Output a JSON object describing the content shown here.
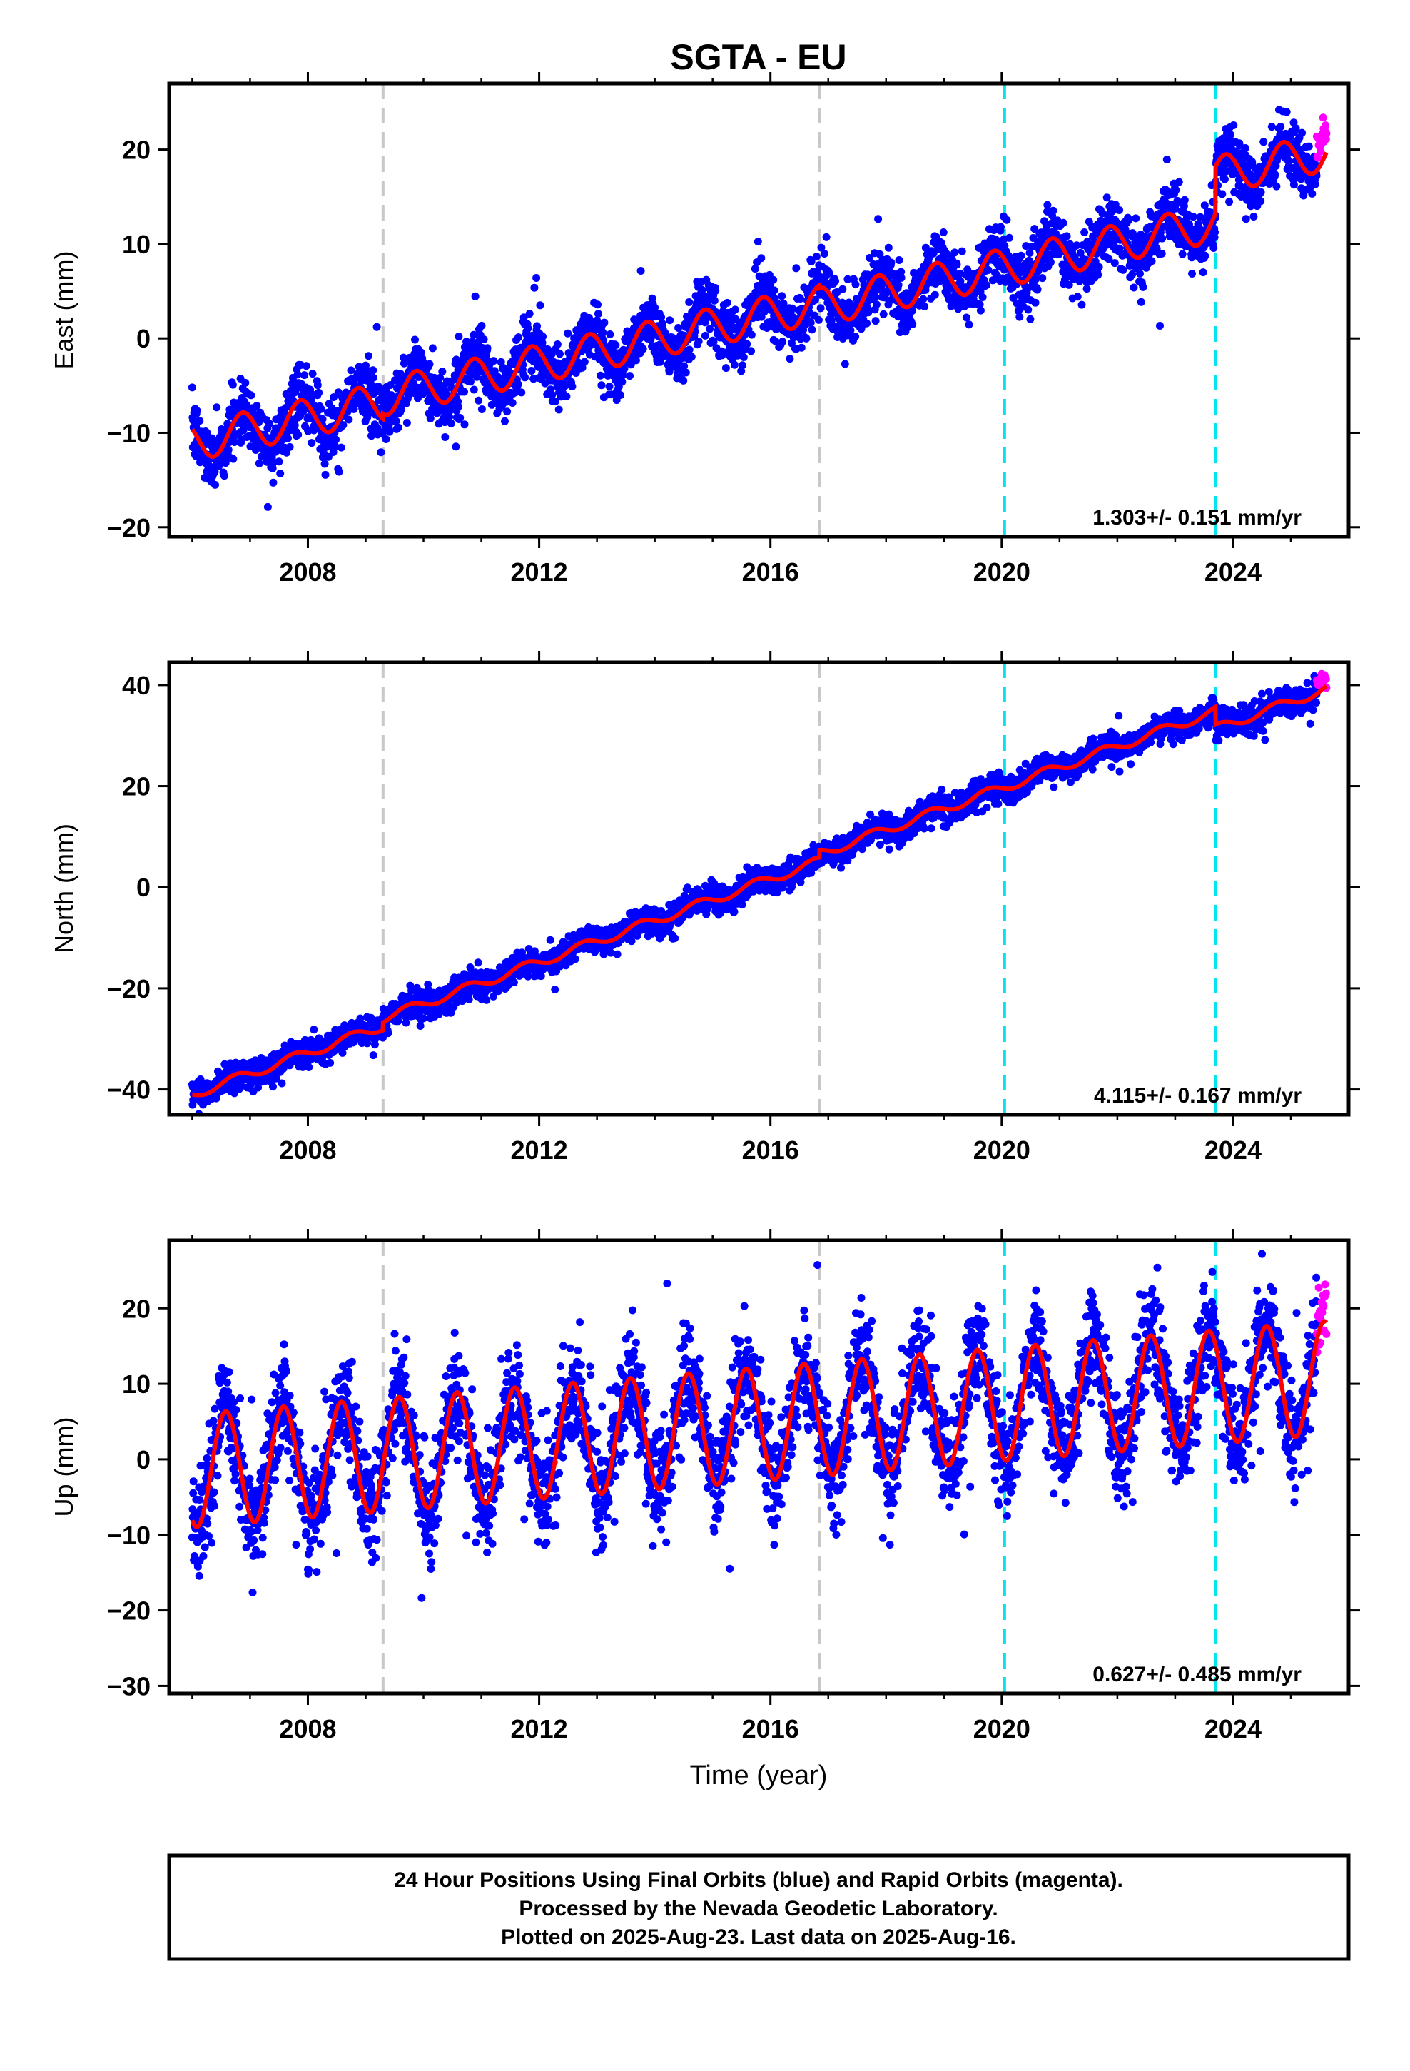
{
  "figure_title": "SGTA - EU",
  "xlabel": "Time (year)",
  "footer_lines": [
    "24 Hour Positions Using Final Orbits (blue) and Rapid Orbits (magenta).",
    "Processed by the Nevada Geodetic Laboratory.",
    "Plotted on 2025-Aug-23. Last data on 2025-Aug-16."
  ],
  "colors": {
    "final_orbits": "#0000ff",
    "rapid_orbits": "#ff00ff",
    "model_fit": "#ff0000",
    "gray_lines": "#c8c8c8",
    "cyan_lines": "#00e5ee"
  },
  "chart_data": [
    {
      "type": "scatter",
      "title": "SGTA - EU",
      "ylabel": "East (mm)",
      "xlim": [
        2005.6,
        2026.0
      ],
      "ylim": [
        -21,
        27
      ],
      "xticks": [
        2008,
        2012,
        2016,
        2020,
        2024
      ],
      "yticks": [
        -20,
        -10,
        0,
        10,
        20
      ],
      "rate_label": "1.303+/- 0.151 mm/yr",
      "vlines_gray": [
        2009.3,
        2016.85
      ],
      "vlines_cyan": [
        2020.05,
        2023.7
      ],
      "series": [
        {
          "name": "Final Orbits",
          "color": "#0000ff",
          "start": 2006.0,
          "end": 2025.45,
          "noise": 1.6,
          "model": {
            "t0": 2006.0,
            "v0": -11.0,
            "rate": 1.303,
            "amp": 2.0,
            "phase": 0.62,
            "offsets": [
              {
                "t": 2009.3,
                "d": 0.5
              },
              {
                "t": 2016.85,
                "d": -0.3
              },
              {
                "t": 2020.05,
                "d": 0.0
              },
              {
                "t": 2023.7,
                "d": 5.0
              }
            ]
          }
        },
        {
          "name": "Rapid Orbits",
          "color": "#ff00ff",
          "start": 2025.45,
          "end": 2025.62,
          "noise": 1.6
        }
      ]
    },
    {
      "type": "scatter",
      "ylabel": "North (mm)",
      "xlim": [
        2005.6,
        2026.0
      ],
      "ylim": [
        -45,
        44.5
      ],
      "xticks": [
        2008,
        2012,
        2016,
        2020,
        2024
      ],
      "yticks": [
        -40,
        -20,
        0,
        20,
        40
      ],
      "rate_label": "4.115+/- 0.167 mm/yr",
      "vlines_gray": [
        2009.3,
        2016.85
      ],
      "vlines_cyan": [
        2020.05,
        2023.7
      ],
      "series": [
        {
          "name": "Final Orbits",
          "color": "#0000ff",
          "start": 2006.0,
          "end": 2025.45,
          "noise": 1.3,
          "model": {
            "t0": 2006.0,
            "v0": -41.0,
            "rate": 4.115,
            "amp": 0.9,
            "phase": 0.5,
            "offsets": [
              {
                "t": 2009.3,
                "d": 1.5
              },
              {
                "t": 2016.85,
                "d": 1.5
              },
              {
                "t": 2020.05,
                "d": 0.0
              },
              {
                "t": 2023.7,
                "d": -3.5
              }
            ]
          }
        },
        {
          "name": "Rapid Orbits",
          "color": "#ff00ff",
          "start": 2025.45,
          "end": 2025.62,
          "noise": 1.3
        }
      ]
    },
    {
      "type": "scatter",
      "ylabel": "Up (mm)",
      "xlabel": "Time (year)",
      "xlim": [
        2005.6,
        2026.0
      ],
      "ylim": [
        -31,
        29
      ],
      "xticks": [
        2008,
        2012,
        2016,
        2020,
        2024
      ],
      "yticks": [
        -30,
        -20,
        -10,
        0,
        10,
        20
      ],
      "rate_label": "0.627+/- 0.485 mm/yr",
      "vlines_gray": [
        2009.3,
        2016.85
      ],
      "vlines_cyan": [
        2020.05,
        2023.7
      ],
      "series": [
        {
          "name": "Final Orbits",
          "color": "#0000ff",
          "start": 2006.0,
          "end": 2025.45,
          "noise": 3.5,
          "model": {
            "t0": 2006.0,
            "v0": -1.5,
            "rate": 0.627,
            "amp": 7.5,
            "phase": 0.33,
            "offsets": [
              {
                "t": 2009.3,
                "d": 0.0
              },
              {
                "t": 2016.85,
                "d": 0.0
              },
              {
                "t": 2020.05,
                "d": 0.0
              },
              {
                "t": 2023.7,
                "d": 0.0
              }
            ]
          }
        },
        {
          "name": "Rapid Orbits",
          "color": "#ff00ff",
          "start": 2025.45,
          "end": 2025.62,
          "noise": 5.0
        }
      ]
    }
  ]
}
